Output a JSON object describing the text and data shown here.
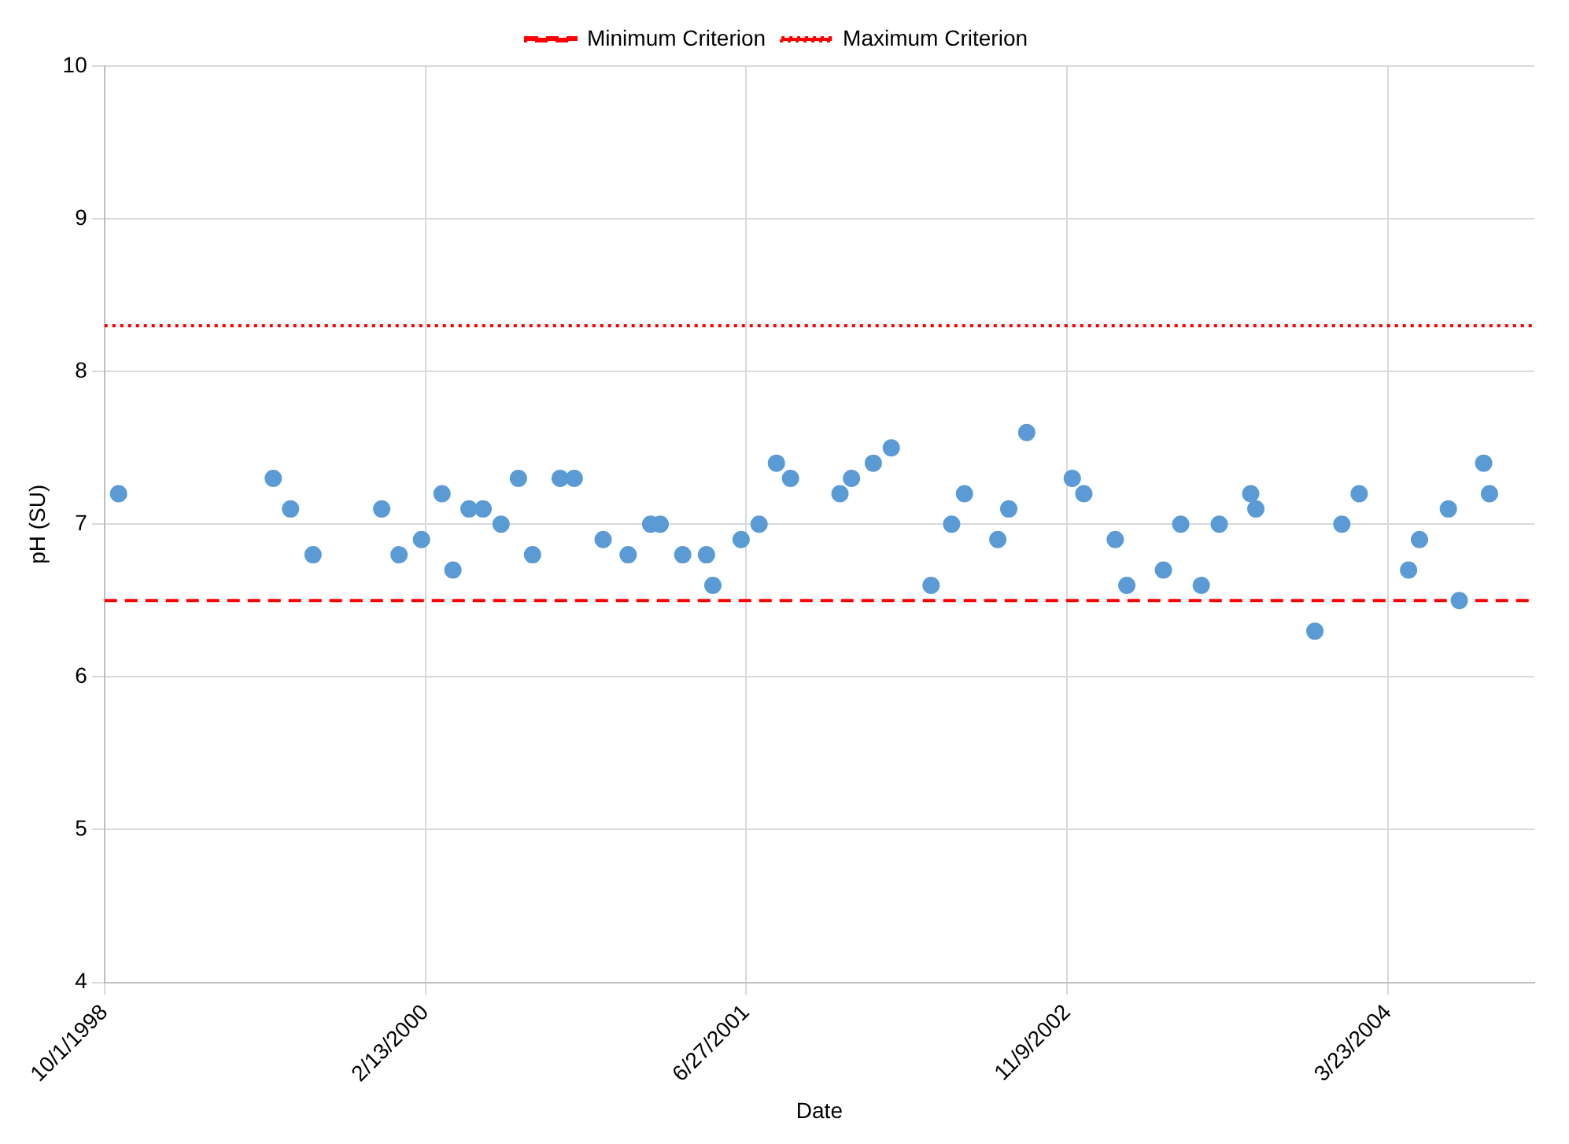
{
  "chart_data": {
    "type": "scatter",
    "xlabel": "Date",
    "ylabel": "pH (SU)",
    "marker": "circle",
    "grid": true,
    "legend": "top",
    "xlim": [
      "1998-10-01",
      "2004-11-06"
    ],
    "xticks": [
      {
        "value": "1998-10-01",
        "label": "10/1/1998"
      },
      {
        "value": "2000-02-13",
        "label": "2/13/2000"
      },
      {
        "value": "2001-06-27",
        "label": "6/27/2001"
      },
      {
        "value": "2002-11-09",
        "label": "11/9/2002"
      },
      {
        "value": "2004-03-23",
        "label": "3/23/2004"
      }
    ],
    "ylim": [
      4,
      10
    ],
    "yticks": [
      4,
      5,
      6,
      7,
      8,
      9,
      10
    ],
    "ref_lines": [
      {
        "axis": "y",
        "value": 6.5,
        "label": "Minimum Criterion",
        "color": "#ff0000",
        "line_style": "dashed"
      },
      {
        "axis": "y",
        "value": 8.3,
        "label": "Maximum Criterion",
        "color": "#ff0000",
        "line_style": "dotted"
      }
    ],
    "series": [
      {
        "color": "#5b9bd5",
        "x": [
          "1998-10-23",
          "1999-06-21",
          "1999-07-18",
          "1999-08-22",
          "1999-12-07",
          "2000-01-03",
          "2000-02-07",
          "2000-03-10",
          "2000-03-27",
          "2000-04-21",
          "2000-05-13",
          "2000-06-10",
          "2000-07-07",
          "2000-07-29",
          "2000-09-10",
          "2000-10-02",
          "2000-11-16",
          "2000-12-25",
          "2001-01-29",
          "2001-02-13",
          "2001-03-20",
          "2001-04-26",
          "2001-05-06",
          "2001-06-19",
          "2001-07-17",
          "2001-08-13",
          "2001-09-04",
          "2001-11-20",
          "2001-12-08",
          "2002-01-11",
          "2002-02-08",
          "2002-04-11",
          "2002-05-13",
          "2002-06-02",
          "2002-07-24",
          "2002-08-10",
          "2002-09-07",
          "2002-11-17",
          "2002-12-05",
          "2003-01-23",
          "2003-02-10",
          "2003-04-08",
          "2003-05-05",
          "2003-06-06",
          "2003-07-04",
          "2003-08-22",
          "2003-08-30",
          "2003-11-30",
          "2004-01-11",
          "2004-02-07",
          "2004-04-24",
          "2004-05-11",
          "2004-06-25",
          "2004-07-12",
          "2004-08-19",
          "2004-08-28"
        ],
        "values": [
          7.2,
          7.3,
          7.1,
          6.8,
          7.1,
          6.8,
          6.9,
          7.2,
          6.7,
          7.1,
          7.1,
          7.0,
          7.3,
          6.8,
          7.3,
          7.3,
          6.9,
          6.8,
          7.0,
          7.0,
          6.8,
          6.8,
          6.6,
          6.9,
          7.0,
          7.4,
          7.3,
          7.2,
          7.3,
          7.4,
          7.5,
          6.6,
          7.0,
          7.2,
          6.9,
          7.1,
          7.6,
          7.3,
          7.2,
          6.9,
          6.6,
          6.7,
          7.0,
          6.6,
          7.0,
          7.2,
          7.1,
          6.3,
          7.0,
          7.2,
          6.7,
          6.9,
          7.1,
          6.5,
          7.4,
          7.2
        ]
      }
    ]
  }
}
